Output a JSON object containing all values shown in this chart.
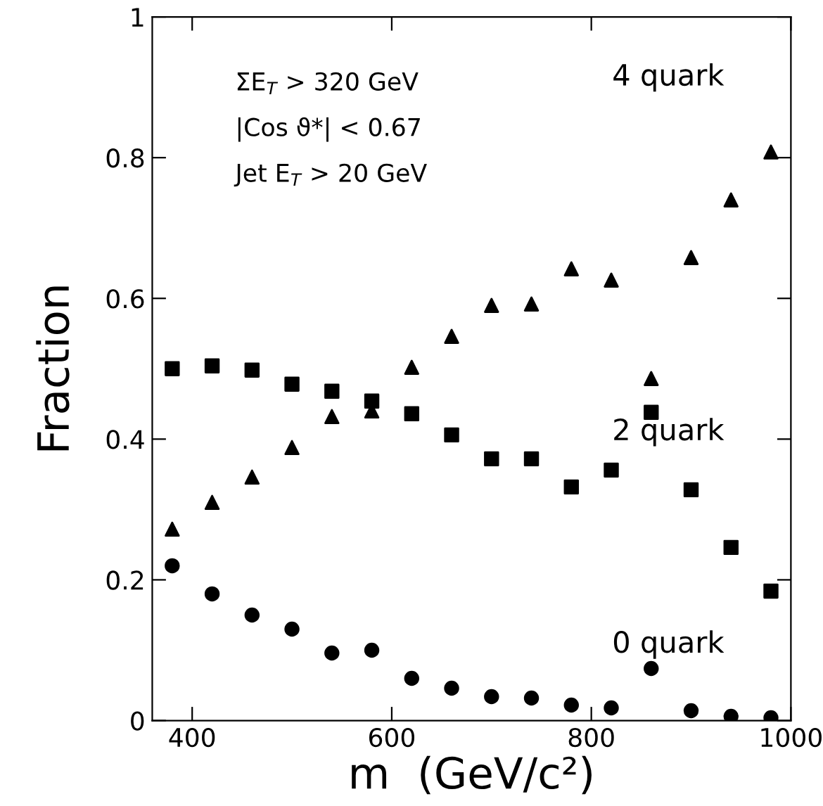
{
  "chart_data": {
    "type": "scatter",
    "xlabel": "m  (GeV/c²)",
    "ylabel": "Fraction",
    "x": [
      380,
      420,
      460,
      500,
      540,
      580,
      620,
      660,
      700,
      740,
      780,
      820,
      860,
      900,
      940,
      980
    ],
    "series": [
      {
        "name": "4 quark",
        "color": "#000000",
        "marker": "triangle",
        "values": [
          0.272,
          0.31,
          0.346,
          0.388,
          0.432,
          0.44,
          0.502,
          0.546,
          0.59,
          0.592,
          0.642,
          0.626,
          0.486,
          0.658,
          0.74,
          0.808
        ]
      },
      {
        "name": "2 quark",
        "color": "#000000",
        "marker": "square",
        "values": [
          0.5,
          0.504,
          0.498,
          0.478,
          0.468,
          0.454,
          0.436,
          0.406,
          0.372,
          0.372,
          0.332,
          0.356,
          0.438,
          0.328,
          0.246,
          0.184
        ]
      },
      {
        "name": "0 quark",
        "color": "#000000",
        "marker": "circle",
        "values": [
          0.22,
          0.18,
          0.15,
          0.13,
          0.096,
          0.1,
          0.06,
          0.046,
          0.034,
          0.032,
          0.022,
          0.018,
          0.074,
          0.014,
          0.006,
          0.004
        ]
      }
    ],
    "annotations": [
      "ΣE$_{T}$ > 320 GeV",
      "|Cos ϑ*| < 0.67",
      "Jet E$_{T}$ > 20 GeV"
    ],
    "xlim": [
      360,
      1000
    ],
    "xticks": [
      400,
      600,
      800,
      1000
    ],
    "ylim": [
      0,
      1
    ],
    "yticks": [
      0,
      0.2,
      0.4,
      0.6,
      0.8,
      1
    ],
    "grid": false,
    "legend": "right"
  }
}
